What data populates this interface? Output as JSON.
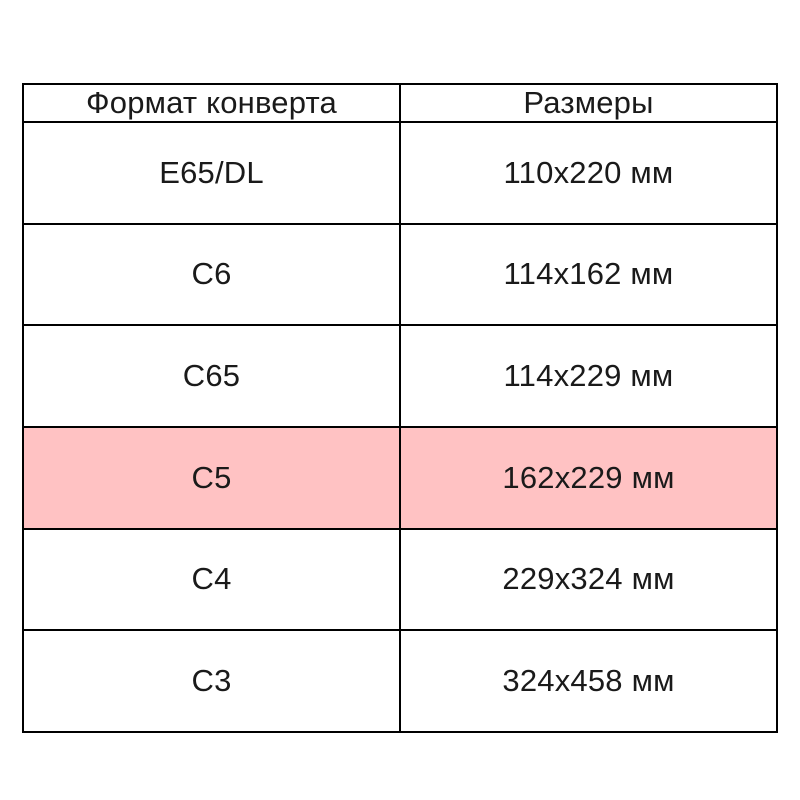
{
  "chart_data": {
    "type": "table",
    "title": "",
    "columns": [
      "Формат конверта",
      "Размеры"
    ],
    "rows": [
      [
        "E65/DL",
        "110x220 мм"
      ],
      [
        "C6",
        "114x162 мм"
      ],
      [
        "C65",
        "114x229 мм"
      ],
      [
        "C5",
        "162x229 мм"
      ],
      [
        "C4",
        "229x324 мм"
      ],
      [
        "C3",
        "324x458 мм"
      ]
    ],
    "highlighted_row_index": 3,
    "highlight_color": "#ffc2c3",
    "border_color": "#000000",
    "text_color": "#1a1a1a",
    "background_color": "#ffffff"
  }
}
